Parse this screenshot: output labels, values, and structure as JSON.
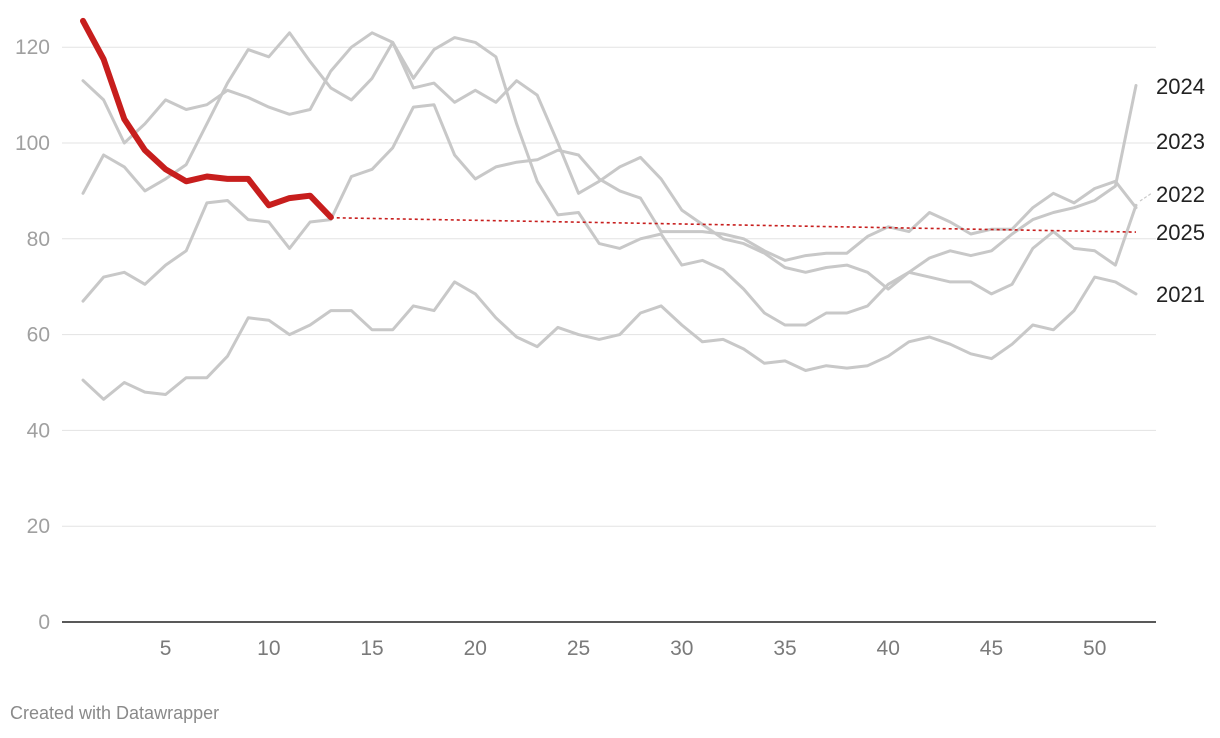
{
  "chart_data": {
    "type": "line",
    "xlim": [
      1,
      52
    ],
    "ylim": [
      0,
      125
    ],
    "yticks": [
      0,
      20,
      40,
      60,
      80,
      100,
      120
    ],
    "xticks": [
      5,
      10,
      15,
      20,
      25,
      30,
      35,
      40,
      45,
      50
    ],
    "colors": {
      "grey": "#c8c8c8",
      "highlight": "#c71e1d",
      "grid": "#e3e3e3",
      "axis": "#222222"
    },
    "series": [
      {
        "name": "2021",
        "values": [
          50.5,
          46.5,
          50,
          48,
          47.5,
          51,
          51,
          55.5,
          63.5,
          63,
          60,
          62,
          65,
          65,
          61,
          61,
          66,
          65,
          71,
          68.5,
          63.5,
          59.5,
          57.5,
          61.5,
          60,
          59,
          60,
          64.5,
          66,
          62,
          58.5,
          59,
          57,
          54,
          54.5,
          52.5,
          53.5,
          53,
          53.5,
          55.5,
          58.5,
          59.5,
          58,
          56,
          55,
          58,
          62,
          61,
          65,
          72,
          71,
          68.5
        ]
      },
      {
        "name": "2022",
        "values": [
          67,
          72,
          73,
          70.5,
          74.5,
          77.5,
          87.5,
          88,
          84,
          83.5,
          78,
          83.5,
          84,
          93,
          94.5,
          99,
          107.5,
          108,
          97.5,
          92.5,
          95,
          96,
          96.5,
          98.5,
          97.5,
          92.5,
          90,
          88.5,
          81.5,
          81.5,
          81.5,
          81,
          80,
          77.5,
          75.5,
          76.5,
          77,
          77,
          80.5,
          82.5,
          81.5,
          85.5,
          83.5,
          81,
          82,
          82,
          86.5,
          89.5,
          87.5,
          90.5,
          92,
          86.5
        ]
      },
      {
        "name": "2023",
        "values": [
          89.5,
          97.5,
          95,
          90,
          92.5,
          95.5,
          104,
          112.5,
          119.5,
          118,
          123,
          117,
          111.5,
          109,
          113.5,
          121,
          111.5,
          112.5,
          108.5,
          111,
          108.5,
          113,
          110,
          100,
          89.5,
          92,
          95,
          97,
          92.5,
          86,
          83,
          80,
          79,
          77,
          74,
          73,
          74,
          74.5,
          73,
          69.5,
          73,
          72,
          71,
          71,
          68.5,
          70.5,
          78,
          81.5,
          78,
          77.5,
          74.5,
          87
        ]
      },
      {
        "name": "2024",
        "values": [
          113,
          109,
          100,
          104,
          109,
          107,
          108,
          111,
          109.5,
          107.5,
          106,
          107,
          115,
          120,
          123,
          121,
          113.5,
          119.5,
          122,
          121,
          118,
          104,
          92,
          85,
          85.5,
          79,
          78,
          80,
          81,
          74.5,
          75.5,
          73.5,
          69.5,
          64.5,
          62,
          62,
          64.5,
          64.5,
          66,
          70.5,
          73,
          76,
          77.5,
          76.5,
          77.5,
          81,
          84,
          85.5,
          86.5,
          88,
          91,
          112
        ]
      },
      {
        "name": "2025",
        "values": [
          125.5,
          117.5,
          105,
          98.5,
          94.5,
          92,
          93,
          92.5,
          92.5,
          87,
          88.5,
          89,
          84.5
        ]
      }
    ],
    "trend": {
      "series": "2025",
      "from": [
        13,
        84.4
      ],
      "to": [
        52,
        81.4
      ]
    }
  },
  "credit": "Created with Datawrapper"
}
